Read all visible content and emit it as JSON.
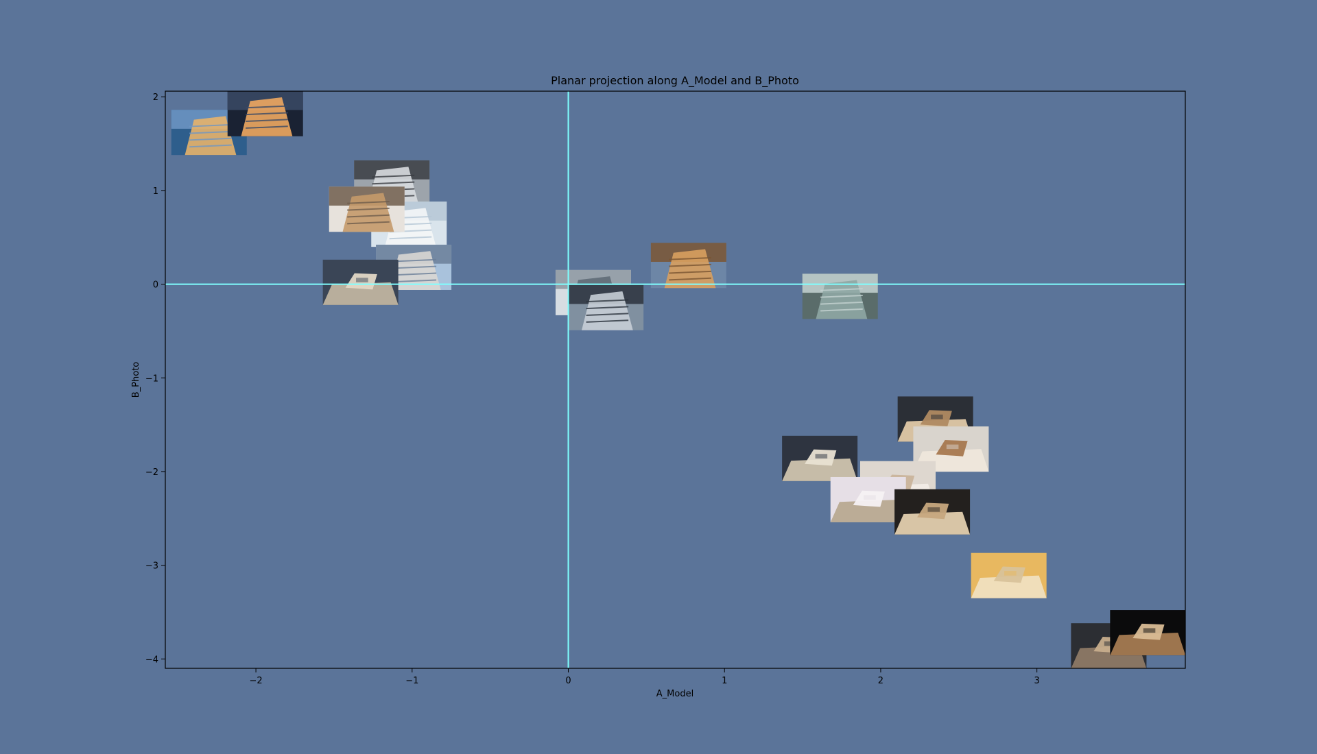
{
  "chart_data": {
    "type": "scatter",
    "title": "Planar projection along A_Model and B_Photo",
    "xlabel": "A_Model",
    "ylabel": "B_Photo",
    "xlim": [
      -2.58,
      3.95
    ],
    "ylim": [
      -4.1,
      2.06
    ],
    "xticks": [
      -2,
      -1,
      0,
      1,
      2,
      3
    ],
    "yticks": [
      2,
      1,
      0,
      -1,
      -2,
      -3,
      -4
    ],
    "xtick_labels": [
      "−2",
      "−1",
      "0",
      "1",
      "2",
      "3"
    ],
    "ytick_labels": [
      "2",
      "1",
      "0",
      "−1",
      "−2",
      "−3",
      "−4"
    ],
    "reference_lines": {
      "x": 0,
      "y": 0,
      "color": "#7fffff"
    },
    "colors": {
      "background": "#5b7499",
      "axes": "#000000"
    },
    "points": [
      {
        "x": -2.3,
        "y": 1.62,
        "kind": "photo",
        "palette": [
          "#2e5e8c",
          "#6f97c4",
          "#e7b36a"
        ]
      },
      {
        "x": -1.94,
        "y": 1.82,
        "kind": "photo",
        "palette": [
          "#1a2233",
          "#3b4a66",
          "#f0a860"
        ]
      },
      {
        "x": -1.13,
        "y": 1.08,
        "kind": "photo",
        "palette": [
          "#9da4ab",
          "#3a3d42",
          "#d8dcdf"
        ]
      },
      {
        "x": -1.02,
        "y": 0.64,
        "kind": "photo",
        "palette": [
          "#d9e4ec",
          "#b5c7d6",
          "#f4f6f7"
        ]
      },
      {
        "x": -1.29,
        "y": 0.8,
        "kind": "photo",
        "palette": [
          "#e7e2dc",
          "#6f5d4c",
          "#c49a6a"
        ]
      },
      {
        "x": -0.99,
        "y": 0.18,
        "kind": "photo",
        "palette": [
          "#a9c2dc",
          "#6b7f99",
          "#d9d7d3"
        ]
      },
      {
        "x": -1.33,
        "y": 0.02,
        "kind": "model",
        "palette": [
          "#3a4556",
          "#e2d8c6",
          "#bfb4a0"
        ]
      },
      {
        "x": 0.16,
        "y": -0.09,
        "kind": "photo",
        "palette": [
          "#d7dde2",
          "#8c96a0",
          "#5f6b77"
        ]
      },
      {
        "x": 0.24,
        "y": -0.25,
        "kind": "photo",
        "palette": [
          "#8090a0",
          "#2b333d",
          "#c6ced6"
        ]
      },
      {
        "x": 0.77,
        "y": 0.2,
        "kind": "photo",
        "palette": [
          "#6d86a6",
          "#7a5532",
          "#d8a05f"
        ]
      },
      {
        "x": 1.74,
        "y": -0.13,
        "kind": "photo",
        "palette": [
          "#5a6c6a",
          "#c5d3d2",
          "#8ea7a4"
        ]
      },
      {
        "x": 2.35,
        "y": -1.44,
        "kind": "model",
        "palette": [
          "#2b2f36",
          "#b08a62",
          "#e0c9a8"
        ]
      },
      {
        "x": 2.45,
        "y": -1.76,
        "kind": "model",
        "palette": [
          "#d9d4cd",
          "#a6784f",
          "#efe7db"
        ]
      },
      {
        "x": 1.61,
        "y": -1.86,
        "kind": "model",
        "palette": [
          "#2e3440",
          "#e9e2d2",
          "#cfc4ae"
        ]
      },
      {
        "x": 2.11,
        "y": -2.13,
        "kind": "model",
        "palette": [
          "#ded7cf",
          "#c9b49b",
          "#f1ece6"
        ]
      },
      {
        "x": 1.92,
        "y": -2.3,
        "kind": "model",
        "palette": [
          "#e6dfe6",
          "#f5f1f3",
          "#b8a991"
        ]
      },
      {
        "x": 2.33,
        "y": -2.43,
        "kind": "model",
        "palette": [
          "#23201e",
          "#c7a87e",
          "#e3cfae"
        ]
      },
      {
        "x": 2.82,
        "y": -3.11,
        "kind": "model",
        "palette": [
          "#e8b860",
          "#d8c29a",
          "#f0dfbf"
        ]
      },
      {
        "x": 3.46,
        "y": -3.86,
        "kind": "model",
        "palette": [
          "#2c2e33",
          "#c7ad8c",
          "#8d7966"
        ]
      },
      {
        "x": 3.71,
        "y": -3.72,
        "kind": "model",
        "palette": [
          "#0b0b0c",
          "#d9bc95",
          "#a57b52"
        ]
      }
    ]
  }
}
